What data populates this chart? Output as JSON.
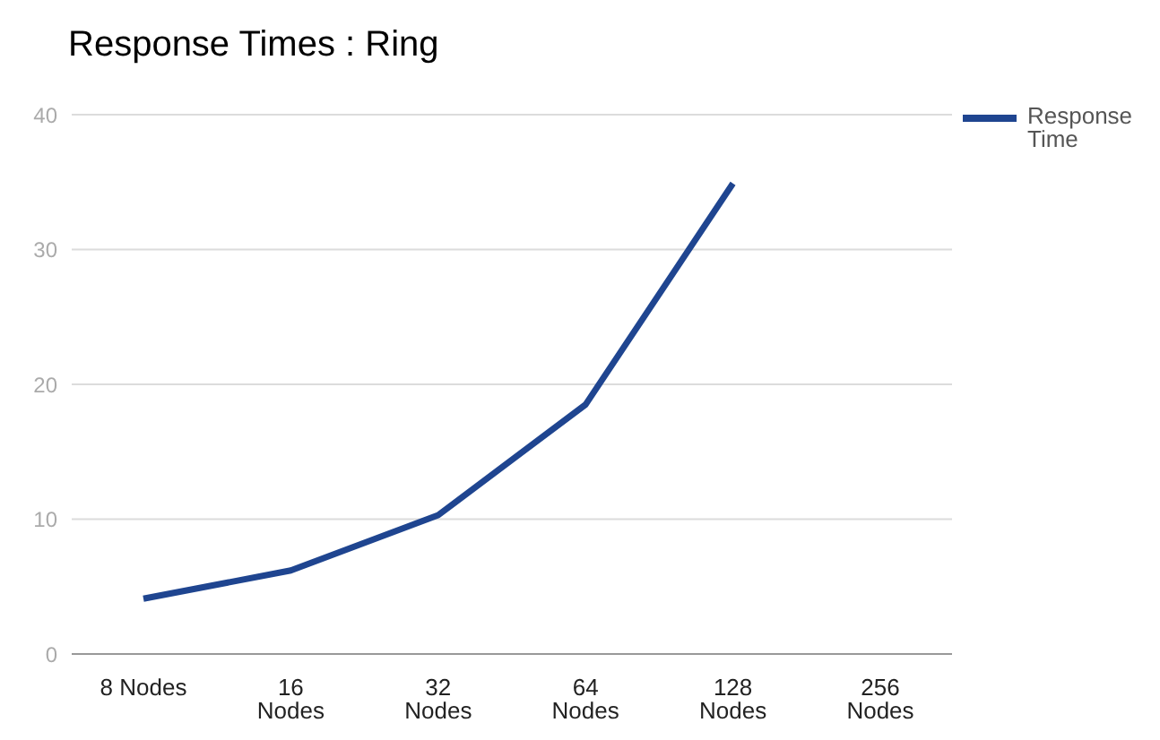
{
  "chart_data": {
    "type": "line",
    "title": "Response Times : Ring",
    "categories": [
      "8 Nodes",
      "16 Nodes",
      "32 Nodes",
      "64 Nodes",
      "128 Nodes",
      "256 Nodes"
    ],
    "series": [
      {
        "name": "Response Time",
        "color": "#1f4590",
        "values": [
          4.1,
          6.2,
          10.3,
          18.5,
          34.9,
          null
        ]
      }
    ],
    "ylim": [
      0,
      40
    ],
    "yticks": [
      0,
      10,
      20,
      30,
      40
    ],
    "grid": "y",
    "legend": "top right",
    "marker": "none",
    "line_style": "solid"
  }
}
